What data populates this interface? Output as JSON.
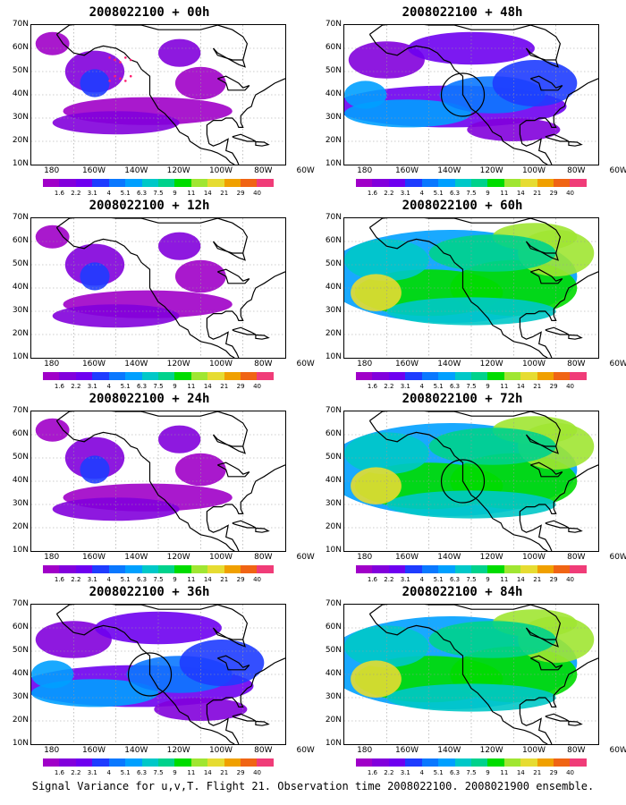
{
  "panels": [
    {
      "title": "2008022100 + 00h",
      "fill": "low",
      "circle": false,
      "dots": true
    },
    {
      "title": "2008022100 + 12h",
      "fill": "low",
      "circle": false,
      "dots": false
    },
    {
      "title": "2008022100 + 24h",
      "fill": "low",
      "circle": false,
      "dots": false
    },
    {
      "title": "2008022100 + 36h",
      "fill": "mid",
      "circle": true,
      "dots": false
    },
    {
      "title": "2008022100 + 48h",
      "fill": "mid",
      "circle": true,
      "dots": false
    },
    {
      "title": "2008022100 + 60h",
      "fill": "high",
      "circle": false,
      "dots": false
    },
    {
      "title": "2008022100 + 72h",
      "fill": "high",
      "circle": true,
      "dots": false
    },
    {
      "title": "2008022100 + 84h",
      "fill": "high",
      "circle": false,
      "dots": false
    }
  ],
  "lat_labels": [
    "70N",
    "60N",
    "50N",
    "40N",
    "30N",
    "20N",
    "10N"
  ],
  "lon_labels": [
    "180",
    "160W",
    "140W",
    "120W",
    "100W",
    "80W",
    "60W"
  ],
  "colorbar": {
    "labels": [
      "1.6",
      "2.2",
      "3.1",
      "4",
      "5.1",
      "6.3",
      "7.5",
      "9",
      "11",
      "14",
      "21",
      "29",
      "40"
    ],
    "colors": [
      "#a000c8",
      "#8200dc",
      "#6e00f0",
      "#1e3cff",
      "#0a78ff",
      "#00a0ff",
      "#00c8c8",
      "#00d28c",
      "#00dc00",
      "#a0e632",
      "#e6dc32",
      "#f0a000",
      "#f06414",
      "#f03c78"
    ]
  },
  "footer": "Signal Variance for u,v,T. Flight 21. Observation time 2008022100. 2008021900 ensemble."
}
